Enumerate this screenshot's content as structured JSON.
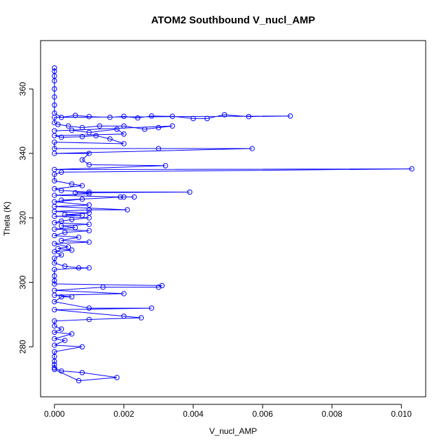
{
  "chart_data": {
    "type": "scatter",
    "subtype": "line-and-point",
    "title": "ATOM2 Southbound V_nucl_AMP",
    "xlabel": "V_nucl_AMP",
    "ylabel": "Theta (K)",
    "xlim": [
      -0.0004,
      0.0107
    ],
    "ylim": [
      264.5,
      375
    ],
    "xticks": [
      0.0,
      0.002,
      0.004,
      0.006,
      0.008,
      0.01
    ],
    "xtick_labels": [
      "0.000",
      "0.002",
      "0.004",
      "0.006",
      "0.008",
      "0.010"
    ],
    "yticks": [
      280,
      300,
      320,
      340,
      360
    ],
    "ytick_labels": [
      "280",
      "300",
      "320",
      "340",
      "360"
    ],
    "grid": false,
    "legend": "none",
    "series_color": "#0000ff",
    "points": [
      [
        0.0,
        366.5
      ],
      [
        0.0,
        365.5
      ],
      [
        0.0,
        364.0
      ],
      [
        0.0,
        362.5
      ],
      [
        0.0,
        360.0
      ],
      [
        0.0,
        357.5
      ],
      [
        0.0,
        355.0
      ],
      [
        0.0,
        352.5
      ],
      [
        0.0002,
        351.2
      ],
      [
        0.0006,
        351.8
      ],
      [
        0.001,
        351.4
      ],
      [
        0.0016,
        351.2
      ],
      [
        0.002,
        351.5
      ],
      [
        0.0024,
        351.0
      ],
      [
        0.0028,
        351.6
      ],
      [
        0.0034,
        351.5
      ],
      [
        0.004,
        350.8
      ],
      [
        0.0044,
        350.8
      ],
      [
        0.0049,
        352.0
      ],
      [
        0.0056,
        351.4
      ],
      [
        0.0068,
        351.6
      ],
      [
        0.0,
        351.2
      ],
      [
        0.0,
        349.5
      ],
      [
        0.0001,
        349.0
      ],
      [
        0.0004,
        348.5
      ],
      [
        0.0008,
        348.0
      ],
      [
        0.0013,
        348.5
      ],
      [
        0.002,
        348.5
      ],
      [
        0.0026,
        347.5
      ],
      [
        0.003,
        348.0
      ],
      [
        0.0034,
        348.5
      ],
      [
        0.0,
        347.0
      ],
      [
        0.0005,
        347.2
      ],
      [
        0.001,
        346.5
      ],
      [
        0.0018,
        347.5
      ],
      [
        0.002,
        346.0
      ],
      [
        0.0,
        345.5
      ],
      [
        0.0002,
        345.0
      ],
      [
        0.0008,
        345.2
      ],
      [
        0.0012,
        345.5
      ],
      [
        0.0016,
        344.5
      ],
      [
        0.002,
        343.0
      ],
      [
        0.0,
        343.5
      ],
      [
        0.0,
        341.5
      ],
      [
        0.003,
        341.5
      ],
      [
        0.0057,
        341.5
      ],
      [
        0.0,
        340.0
      ],
      [
        0.001,
        340.0
      ],
      [
        0.0008,
        338.0
      ],
      [
        0.001,
        336.5
      ],
      [
        0.0032,
        336.2
      ],
      [
        0.0,
        335.0
      ],
      [
        0.0103,
        335.2
      ],
      [
        0.0002,
        334.2
      ],
      [
        0.0,
        333.5
      ],
      [
        0.0,
        331.5
      ],
      [
        0.0005,
        330.5
      ],
      [
        0.0008,
        330.0
      ],
      [
        0.0,
        329.0
      ],
      [
        0.0002,
        328.5
      ],
      [
        0.001,
        328.0
      ],
      [
        0.0039,
        328.0
      ],
      [
        0.0006,
        327.8
      ],
      [
        0.001,
        327.5
      ],
      [
        0.0,
        327.0
      ],
      [
        0.0019,
        326.5
      ],
      [
        0.0023,
        326.5
      ],
      [
        0.002,
        326.5
      ],
      [
        0.0002,
        325.5
      ],
      [
        0.0008,
        325.8
      ],
      [
        0.0,
        325.0
      ],
      [
        0.001,
        324.0
      ],
      [
        0.0,
        323.5
      ],
      [
        0.0021,
        322.5
      ],
      [
        0.001,
        322.5
      ],
      [
        0.0,
        322.0
      ],
      [
        0.001,
        321.5
      ],
      [
        0.0003,
        321.0
      ],
      [
        0.0008,
        320.8
      ],
      [
        0.0,
        320.5
      ],
      [
        0.001,
        320.0
      ],
      [
        0.0005,
        319.5
      ],
      [
        0.0002,
        319.0
      ],
      [
        0.0,
        318.5
      ],
      [
        0.001,
        318.0
      ],
      [
        0.0002,
        317.5
      ],
      [
        0.0006,
        317.0
      ],
      [
        0.0,
        316.5
      ],
      [
        0.001,
        316.0
      ],
      [
        0.0003,
        315.5
      ],
      [
        0.0,
        314.5
      ],
      [
        0.0007,
        314.0
      ],
      [
        0.0002,
        313.0
      ],
      [
        0.001,
        312.5
      ],
      [
        0.0,
        312.0
      ],
      [
        0.0004,
        311.0
      ],
      [
        0.0001,
        310.5
      ],
      [
        0.0005,
        310.0
      ],
      [
        0.0,
        309.5
      ],
      [
        0.0002,
        308.5
      ],
      [
        0.0,
        307.5
      ],
      [
        0.0,
        306.0
      ],
      [
        0.0003,
        305.0
      ],
      [
        0.0007,
        304.5
      ],
      [
        0.001,
        304.5
      ],
      [
        0.0,
        304.0
      ],
      [
        0.0,
        302.0
      ],
      [
        0.0,
        300.5
      ],
      [
        0.0,
        299.5
      ],
      [
        0.0031,
        299.0
      ],
      [
        0.003,
        298.5
      ],
      [
        0.0014,
        298.5
      ],
      [
        0.0,
        297.5
      ],
      [
        0.002,
        296.5
      ],
      [
        0.0,
        296.0
      ],
      [
        0.0005,
        295.5
      ],
      [
        0.0002,
        295.5
      ],
      [
        0.0,
        294.0
      ],
      [
        0.001,
        292.0
      ],
      [
        0.0028,
        292.0
      ],
      [
        0.0,
        291.5
      ],
      [
        0.002,
        289.5
      ],
      [
        0.0025,
        289.0
      ],
      [
        0.001,
        288.5
      ],
      [
        0.0,
        288.0
      ],
      [
        0.0,
        286.5
      ],
      [
        0.0002,
        285.5
      ],
      [
        0.0,
        284.5
      ],
      [
        0.0005,
        284.0
      ],
      [
        0.0,
        282.5
      ],
      [
        0.0003,
        282.0
      ],
      [
        0.0,
        280.5
      ],
      [
        0.0008,
        280.0
      ],
      [
        0.0,
        278.5
      ],
      [
        0.0,
        277.0
      ],
      [
        0.0,
        275.5
      ],
      [
        0.0,
        274.5
      ],
      [
        0.0,
        273.5
      ],
      [
        0.0002,
        272.5
      ],
      [
        0.0008,
        272.0
      ],
      [
        0.0018,
        270.5
      ],
      [
        0.0007,
        269.5
      ],
      [
        0.0,
        273.0
      ]
    ]
  }
}
